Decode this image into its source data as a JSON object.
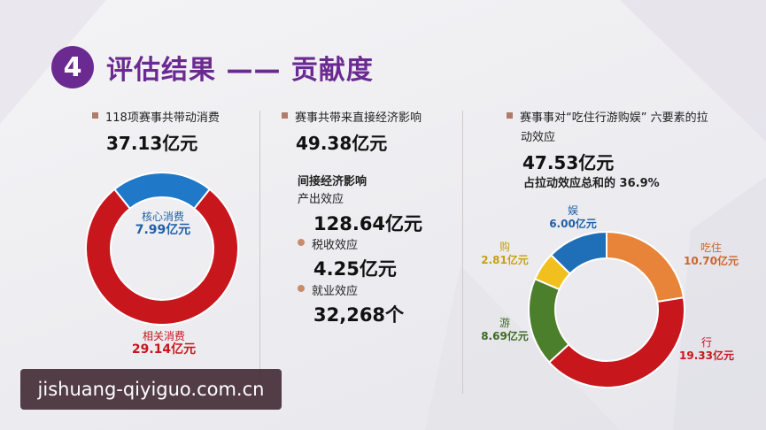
{
  "header": {
    "number": "4",
    "title": "评估结果 —— 贡献度"
  },
  "col1": {
    "label": "118项赛事共带动消费",
    "total": "37.13亿元",
    "donut": {
      "core_label": "核心消费",
      "core_value": "7.99亿元",
      "related_label": "相关消费",
      "related_value": "29.14亿元"
    }
  },
  "col2": {
    "label": "赛事共带来直接经济影响",
    "direct": "49.38亿元",
    "indirect_heading": "间接经济影响",
    "output_label": "产出效应",
    "output_value": "128.64亿元",
    "tax_label": "税收效应",
    "tax_value": "4.25亿元",
    "jobs_label": "就业效应",
    "jobs_value": "32,268个"
  },
  "col3": {
    "label_line1": "赛事事对“吃住行游购娱” 六要素的拉",
    "label_line2": "动效应",
    "total": "47.53亿元",
    "share_text": "占拉动效应总和的",
    "share_value": "36.9%",
    "segments": [
      {
        "name": "吃住",
        "value": "10.70亿元",
        "color": "#e8833a"
      },
      {
        "name": "行",
        "value": "19.33亿元",
        "color": "#c8161d"
      },
      {
        "name": "游",
        "value": "8.69亿元",
        "color": "#4c7f2c"
      },
      {
        "name": "购",
        "value": "2.81亿元",
        "color": "#f2c01e"
      },
      {
        "name": "娱",
        "value": "6.00亿元",
        "color": "#1f6fb8"
      }
    ]
  },
  "chart_data": [
    {
      "type": "pie",
      "categories": [
        "核心消费",
        "相关消费"
      ],
      "values": [
        7.99,
        29.14
      ],
      "colors": [
        "#1f78c8",
        "#c8161d"
      ]
    },
    {
      "type": "pie",
      "categories": [
        "吃住",
        "行",
        "游",
        "购",
        "娱"
      ],
      "values": [
        10.7,
        19.33,
        8.69,
        2.81,
        6.0
      ],
      "colors": [
        "#e8833a",
        "#c8161d",
        "#4c7f2c",
        "#f2c01e",
        "#1f6fb8"
      ]
    }
  ],
  "watermark": "jishuang-qiyiguo.com.cn"
}
